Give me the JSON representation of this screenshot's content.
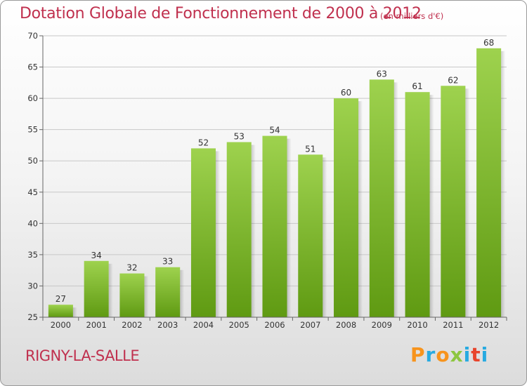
{
  "header": {
    "title": "Dotation Globale de Fonctionnement de 2000 à 2012",
    "subtitle": "(en milliers d'€)"
  },
  "footer": {
    "place": "RIGNY-LA-SALLE",
    "logo": "Proxiti"
  },
  "colors": {
    "text_accent": "#c0304e",
    "bar_top": "#9ed24e",
    "bar_bottom": "#5f9a12",
    "logo_letters": [
      "#f7941d",
      "#27aae1",
      "#f7941d",
      "#8dc63f",
      "#27aae1",
      "#e8452c",
      "#27aae1"
    ]
  },
  "chart_data": {
    "type": "bar",
    "title": "Dotation Globale de Fonctionnement de 2000 à 2012",
    "subtitle": "(en milliers d'€)",
    "xlabel": "",
    "ylabel": "",
    "categories": [
      "2000",
      "2001",
      "2002",
      "2003",
      "2004",
      "2005",
      "2006",
      "2007",
      "2008",
      "2009",
      "2010",
      "2011",
      "2012"
    ],
    "values": [
      27,
      34,
      32,
      33,
      52,
      53,
      54,
      51,
      60,
      63,
      61,
      62,
      68
    ],
    "ylim": [
      25,
      70
    ],
    "yticks": [
      25,
      30,
      35,
      40,
      45,
      50,
      55,
      60,
      65,
      70
    ],
    "grid": true,
    "legend": "none"
  }
}
